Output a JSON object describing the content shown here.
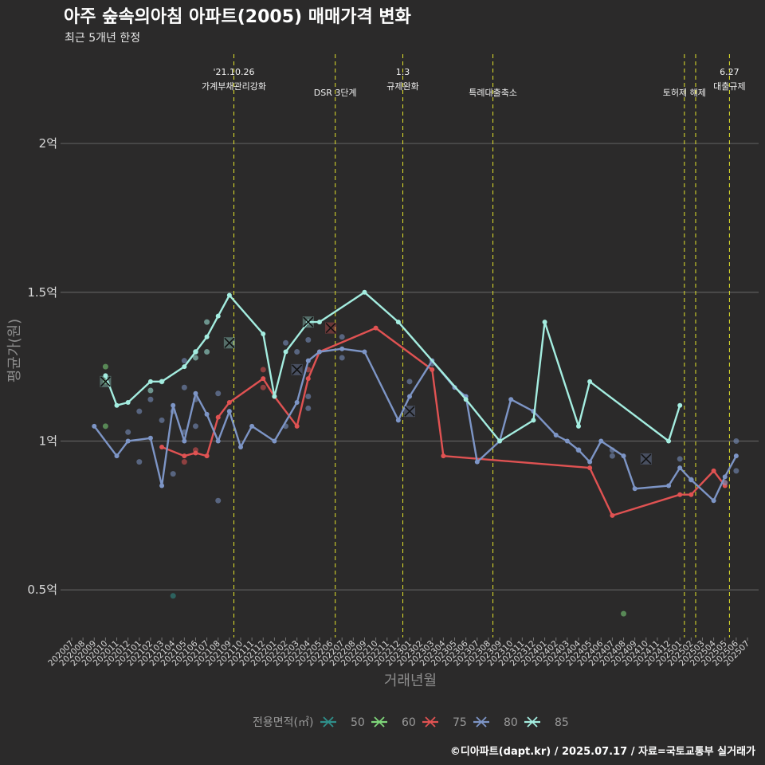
{
  "chart_data": {
    "type": "line",
    "title": "아주 숲속의아침 아파트(2005) 매매가격 변화",
    "subtitle": "최근 5개년 한정",
    "xlabel": "거래년월",
    "ylabel": "평균가(원)",
    "caption": "©디아파트(dapt.kr) / 2025.07.17 / 자료=국토교통부 실거래가",
    "legend_title": "전용면적(㎡)",
    "legend_position": "bottom",
    "grid": true,
    "y_unit": "억",
    "ylim": [
      0.34,
      2.3
    ],
    "y_ticks": [
      {
        "value": 0.5,
        "label": "0.5억"
      },
      {
        "value": 1.0,
        "label": "1억"
      },
      {
        "value": 1.5,
        "label": "1.5억"
      },
      {
        "value": 2.0,
        "label": "2억"
      }
    ],
    "x_categories": [
      "202007",
      "202008",
      "202009",
      "202010",
      "202011",
      "202012",
      "202101",
      "202102",
      "202103",
      "202104",
      "202105",
      "202106",
      "202107",
      "202108",
      "202109",
      "202110",
      "202111",
      "202112",
      "202201",
      "202202",
      "202203",
      "202204",
      "202205",
      "202206",
      "202207",
      "202208",
      "202209",
      "202210",
      "202211",
      "202212",
      "202301",
      "202302",
      "202303",
      "202304",
      "202305",
      "202306",
      "202307",
      "202308",
      "202309",
      "202310",
      "202311",
      "202312",
      "202401",
      "202402",
      "202403",
      "202404",
      "202405",
      "202406",
      "202407",
      "202408",
      "202409",
      "202410",
      "202411",
      "202412",
      "202501",
      "202502",
      "202503",
      "202504",
      "202505",
      "202506",
      "202507"
    ],
    "events": [
      {
        "x": 14.4,
        "lines": [
          "'21.10.26",
          "가계부채관리강화"
        ]
      },
      {
        "x": 23.4,
        "lines": [
          "DSR 3단계"
        ]
      },
      {
        "x": 29.4,
        "lines": [
          "1.3",
          "규제완화"
        ]
      },
      {
        "x": 37.4,
        "lines": [
          "특례대출축소"
        ]
      },
      {
        "x": 54.4,
        "lines": [
          "토허제 해제"
        ]
      },
      {
        "x": 55.4,
        "lines": []
      },
      {
        "x": 58.4,
        "lines": [
          "6.27",
          "대출규제"
        ]
      }
    ],
    "series": [
      {
        "name": "50",
        "color": "#2f8f8a",
        "line": [],
        "points": [
          [
            9,
            0.48
          ]
        ],
        "x_markers": []
      },
      {
        "name": "60",
        "color": "#7ed67a",
        "line": [],
        "points": [
          [
            3,
            1.25
          ],
          [
            3,
            1.2
          ],
          [
            3,
            1.05
          ],
          [
            49,
            0.42
          ]
        ],
        "x_markers": []
      },
      {
        "name": "75",
        "color": "#e05252",
        "line": [
          [
            8,
            0.98
          ],
          [
            10,
            0.95
          ],
          [
            11,
            0.96
          ],
          [
            12,
            0.95
          ],
          [
            13,
            1.08
          ],
          [
            14,
            1.13
          ],
          [
            17,
            1.21
          ],
          [
            18,
            1.15
          ],
          [
            20,
            1.05
          ],
          [
            21,
            1.21
          ],
          [
            22,
            1.3
          ],
          [
            27,
            1.38
          ],
          [
            32,
            1.24
          ],
          [
            33,
            0.95
          ],
          [
            46,
            0.91
          ],
          [
            48,
            0.75
          ],
          [
            54,
            0.82
          ],
          [
            55,
            0.82
          ],
          [
            57,
            0.9
          ],
          [
            58,
            0.85
          ]
        ],
        "points": [
          [
            10,
            0.93
          ],
          [
            11,
            0.97
          ],
          [
            17,
            1.24
          ],
          [
            17,
            1.18
          ],
          [
            21,
            1.24
          ],
          [
            58,
            0.86
          ]
        ],
        "x_markers": [
          [
            23,
            1.38
          ]
        ]
      },
      {
        "name": "80",
        "color": "#7d95c6",
        "line": [
          [
            2,
            1.05
          ],
          [
            4,
            0.95
          ],
          [
            5,
            1.0
          ],
          [
            7,
            1.01
          ],
          [
            8,
            0.85
          ],
          [
            9,
            1.12
          ],
          [
            10,
            1.0
          ],
          [
            11,
            1.16
          ],
          [
            12,
            1.09
          ],
          [
            13,
            1.0
          ],
          [
            14,
            1.1
          ],
          [
            15,
            0.98
          ],
          [
            16,
            1.05
          ],
          [
            18,
            1.0
          ],
          [
            20,
            1.13
          ],
          [
            21,
            1.27
          ],
          [
            22,
            1.3
          ],
          [
            24,
            1.31
          ],
          [
            26,
            1.3
          ],
          [
            29,
            1.07
          ],
          [
            30,
            1.15
          ],
          [
            32,
            1.27
          ],
          [
            34,
            1.18
          ],
          [
            35,
            1.15
          ],
          [
            36,
            0.93
          ],
          [
            38,
            1.0
          ],
          [
            39,
            1.14
          ],
          [
            41,
            1.1
          ],
          [
            43,
            1.02
          ],
          [
            44,
            1.0
          ],
          [
            45,
            0.97
          ],
          [
            46,
            0.93
          ],
          [
            47,
            1.0
          ],
          [
            49,
            0.95
          ],
          [
            50,
            0.84
          ],
          [
            53,
            0.85
          ],
          [
            54,
            0.91
          ],
          [
            55,
            0.87
          ],
          [
            57,
            0.8
          ],
          [
            58,
            0.88
          ],
          [
            59,
            0.95
          ]
        ],
        "points": [
          [
            5,
            1.03
          ],
          [
            6,
            1.1
          ],
          [
            6,
            0.93
          ],
          [
            7,
            1.14
          ],
          [
            8,
            1.07
          ],
          [
            9,
            1.1
          ],
          [
            9,
            0.89
          ],
          [
            10,
            1.27
          ],
          [
            10,
            1.18
          ],
          [
            10,
            1.03
          ],
          [
            11,
            1.14
          ],
          [
            11,
            1.05
          ],
          [
            13,
            1.16
          ],
          [
            13,
            0.8
          ],
          [
            19,
            1.33
          ],
          [
            19,
            1.05
          ],
          [
            20,
            1.3
          ],
          [
            21,
            1.34
          ],
          [
            21,
            1.15
          ],
          [
            21,
            1.11
          ],
          [
            24,
            1.35
          ],
          [
            24,
            1.28
          ],
          [
            30,
            1.2
          ],
          [
            32,
            1.26
          ],
          [
            45,
            0.97
          ],
          [
            48,
            0.97
          ],
          [
            48,
            0.95
          ],
          [
            54,
            0.94
          ],
          [
            55,
            0.87
          ],
          [
            58,
            0.86
          ],
          [
            59,
            1.0
          ],
          [
            59,
            0.9
          ]
        ],
        "x_markers": [
          [
            20,
            1.24
          ],
          [
            30,
            1.1
          ],
          [
            51,
            0.94
          ]
        ]
      },
      {
        "name": "85",
        "color": "#a4ede0",
        "line": [
          [
            3,
            1.22
          ],
          [
            4,
            1.12
          ],
          [
            5,
            1.13
          ],
          [
            7,
            1.2
          ],
          [
            8,
            1.2
          ],
          [
            10,
            1.25
          ],
          [
            11,
            1.3
          ],
          [
            12,
            1.35
          ],
          [
            13,
            1.42
          ],
          [
            14,
            1.49
          ],
          [
            17,
            1.36
          ],
          [
            18,
            1.15
          ],
          [
            19,
            1.3
          ],
          [
            21,
            1.4
          ],
          [
            22,
            1.4
          ],
          [
            26,
            1.5
          ],
          [
            29,
            1.4
          ],
          [
            35,
            1.14
          ],
          [
            38,
            1.0
          ],
          [
            41,
            1.07
          ],
          [
            42,
            1.4
          ],
          [
            45,
            1.05
          ],
          [
            46,
            1.2
          ],
          [
            53,
            1.0
          ],
          [
            54,
            1.12
          ]
        ],
        "points": [
          [
            7,
            1.17
          ],
          [
            8,
            1.2
          ],
          [
            11,
            1.3
          ],
          [
            11,
            1.28
          ],
          [
            12,
            1.4
          ],
          [
            12,
            1.3
          ]
        ],
        "x_markers": [
          [
            3,
            1.2
          ],
          [
            14,
            1.33
          ],
          [
            21,
            1.4
          ]
        ]
      }
    ]
  }
}
